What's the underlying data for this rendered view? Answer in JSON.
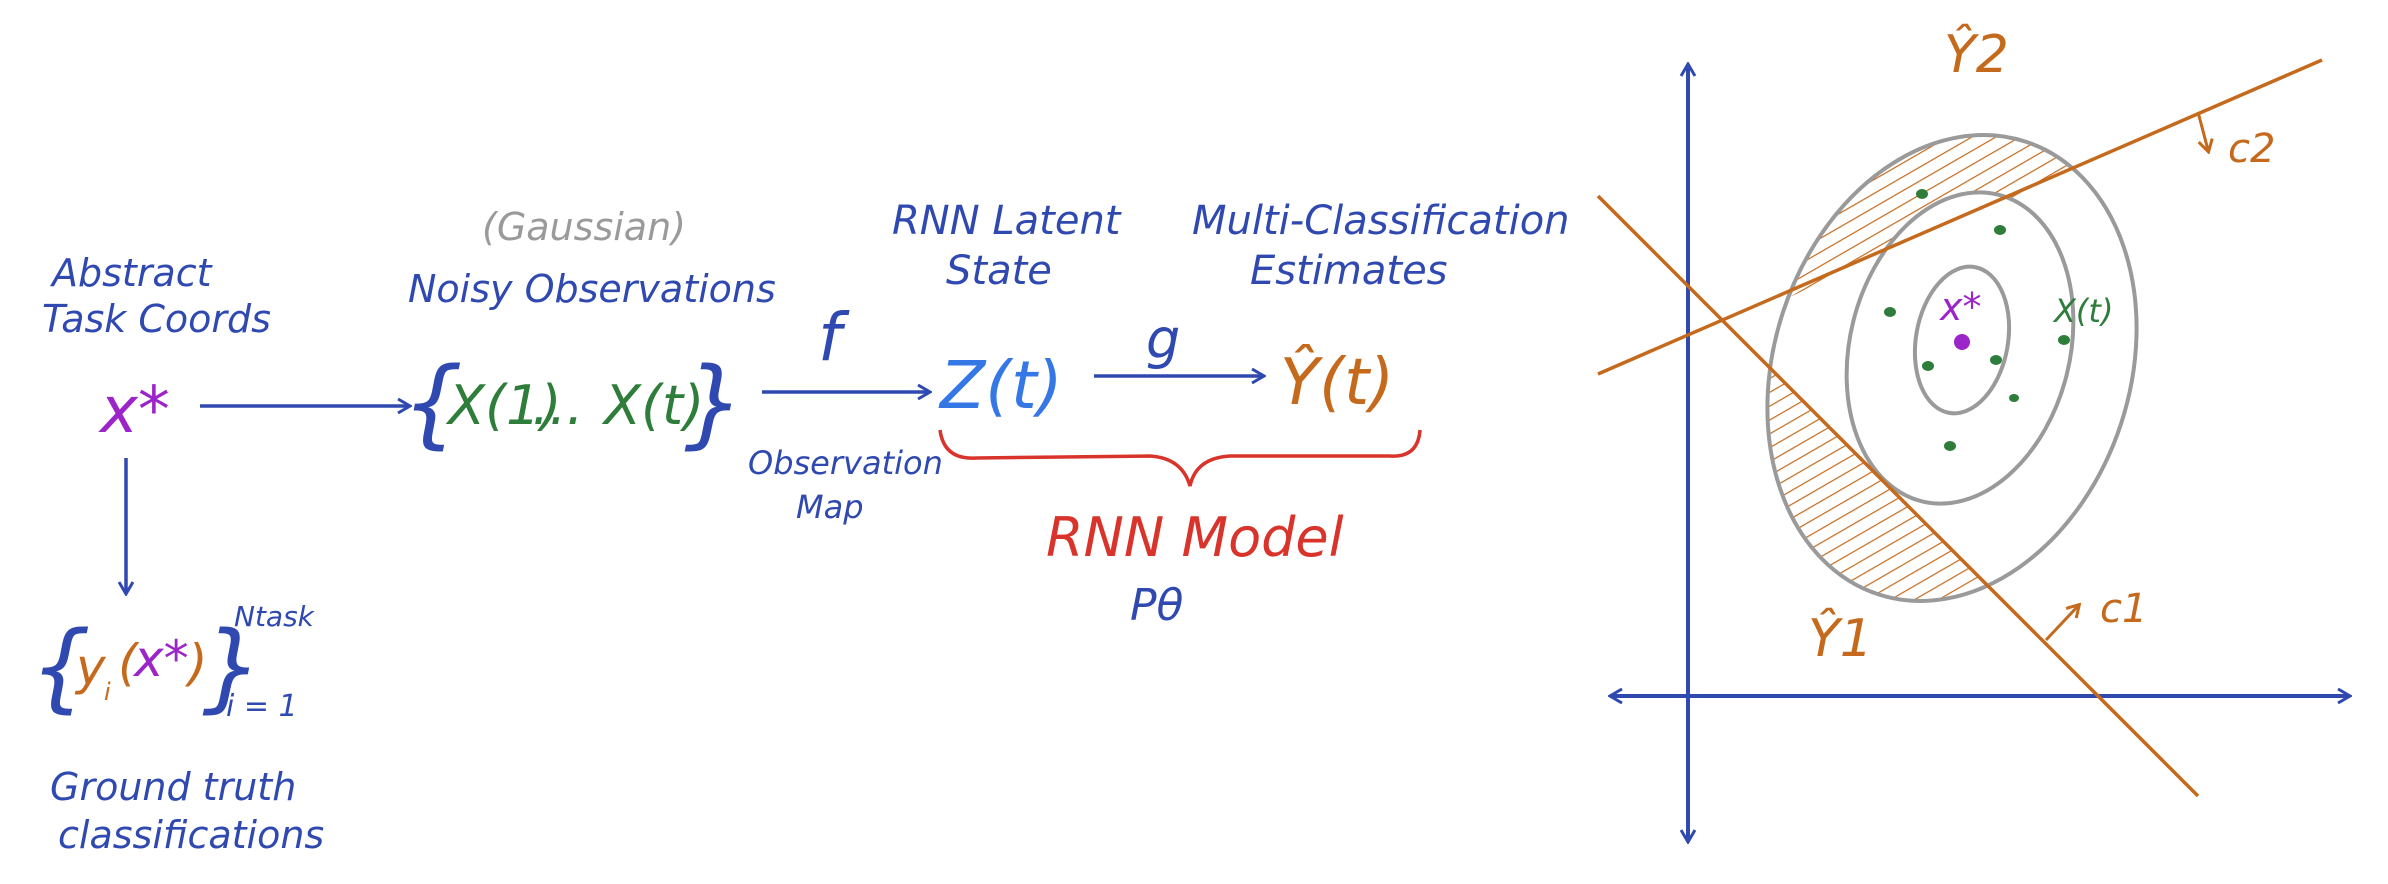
{
  "left_diagram": {
    "abstract_task_coords": [
      "Abstract",
      "Task Coords"
    ],
    "x_star": "x*",
    "gaussian_note": "(Gaussian)",
    "noisy_observations": "Noisy Observations",
    "brace_left": "{",
    "brace_right": "}",
    "x_1": "X(1)",
    "dots": "...",
    "x_t": "X(t)",
    "f": "f",
    "observation_map": [
      "Observation",
      "Map"
    ],
    "rnn_latent_state": [
      "RNN Latent",
      "State"
    ],
    "z_t": "Z(t)",
    "g": "g",
    "multi_classification": [
      "Multi-Classification",
      "Estimates"
    ],
    "y_hat_t": "Ŷ(t)",
    "rnn_model": "RNN Model",
    "p_theta": "Pθ",
    "ground_truth_set": {
      "y": "y",
      "sub_i": "i",
      "open_paren": "(",
      "x_star": "x*",
      "close_paren": ")",
      "superscript": "Ntask",
      "subscript": "i = 1"
    },
    "ground_truth_label": [
      "Ground truth",
      "classifications"
    ]
  },
  "right_diagram": {
    "y_hat_2": "Ŷ2",
    "y_hat_1": "Ŷ1",
    "c_2": "c2",
    "c_1": "c1",
    "x_star": "x*",
    "x_t": "X(t)"
  },
  "colors": {
    "blue": "#2f49b0",
    "green": "#2e7d3a",
    "orange": "#c56a1c",
    "purple": "#9b25c8",
    "red": "#d9342b",
    "gray": "#9a9a9a",
    "sky": "#3578e5"
  }
}
